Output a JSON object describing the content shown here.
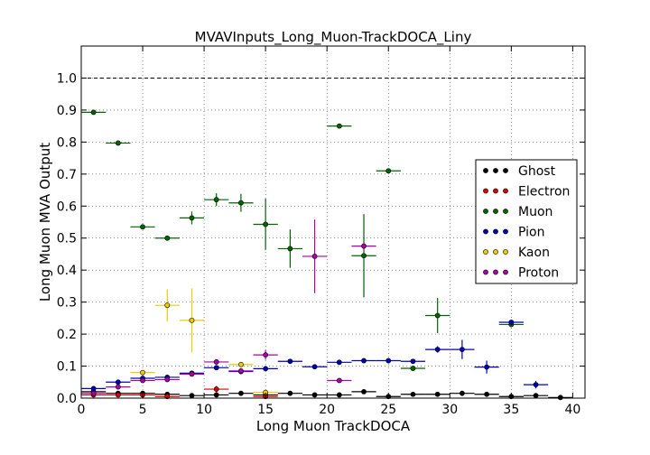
{
  "chart_data": {
    "type": "scatter",
    "title": "MVAVInputs_Long_Muon-TrackDOCA_Liny",
    "xlabel": "Long Muon TrackDOCA",
    "ylabel": "Long Muon MVA Output",
    "xlim": [
      0,
      41
    ],
    "ylim": [
      0,
      1.1
    ],
    "xticks": [
      0,
      5,
      10,
      15,
      20,
      25,
      30,
      35,
      40
    ],
    "yticks": [
      0.0,
      0.1,
      0.2,
      0.3,
      0.4,
      0.5,
      0.6,
      0.7,
      0.8,
      0.9,
      1.0
    ],
    "x_tick_labels": [
      "0",
      "5",
      "10",
      "15",
      "20",
      "25",
      "30",
      "35",
      "40"
    ],
    "y_tick_labels": [
      "0.0",
      "0.1",
      "0.2",
      "0.3",
      "0.4",
      "0.5",
      "0.6",
      "0.7",
      "0.8",
      "0.9",
      "1.0"
    ],
    "grid": true,
    "reference_line": 1.0,
    "legend_position": "right",
    "xerr": 1.0,
    "series": [
      {
        "name": "Ghost",
        "color": "#000000",
        "points": [
          [
            1,
            0.02,
            0.002
          ],
          [
            3,
            0.015,
            0.002
          ],
          [
            5,
            0.015,
            0.002
          ],
          [
            7,
            0.012,
            0.002
          ],
          [
            9,
            0.008,
            0.002
          ],
          [
            11,
            0.01,
            0.002
          ],
          [
            13,
            0.015,
            0.002
          ],
          [
            15,
            0.01,
            0.002
          ],
          [
            17,
            0.015,
            0.002
          ],
          [
            19,
            0.01,
            0.002
          ],
          [
            21,
            0.01,
            0.002
          ],
          [
            23,
            0.02,
            0.002
          ],
          [
            25,
            0.005,
            0.002
          ],
          [
            27,
            0.012,
            0.002
          ],
          [
            29,
            0.012,
            0.002
          ],
          [
            31,
            0.015,
            0.002
          ],
          [
            33,
            0.012,
            0.002
          ],
          [
            35,
            0.005,
            0.002
          ],
          [
            37,
            0.008,
            0.002
          ],
          [
            39,
            0.002,
            0.002
          ]
        ]
      },
      {
        "name": "Electron",
        "color": "#dd0000",
        "points": [
          [
            1,
            0.01,
            0.003
          ],
          [
            3,
            0.01,
            0.003
          ],
          [
            5,
            0.01,
            0.003
          ],
          [
            7,
            0.005,
            0.003
          ],
          [
            11,
            0.028,
            0.01
          ],
          [
            15,
            0.005,
            0.003
          ]
        ]
      },
      {
        "name": "Muon",
        "color": "#006400",
        "points": [
          [
            1,
            0.893,
            0.004
          ],
          [
            3,
            0.797,
            0.004
          ],
          [
            5,
            0.535,
            0.005
          ],
          [
            7,
            0.5,
            0.008
          ],
          [
            9,
            0.563,
            0.02
          ],
          [
            11,
            0.62,
            0.02
          ],
          [
            13,
            0.61,
            0.028
          ],
          [
            15,
            0.543,
            0.08
          ],
          [
            17,
            0.467,
            0.06
          ],
          [
            21,
            0.85,
            0.006
          ],
          [
            23,
            0.445,
            0.13
          ],
          [
            25,
            0.71,
            0.006
          ],
          [
            27,
            0.093,
            0.004
          ],
          [
            29,
            0.258,
            0.055
          ],
          [
            35,
            0.23,
            0.006
          ]
        ]
      },
      {
        "name": "Pion",
        "color": "#0000bb",
        "points": [
          [
            1,
            0.03,
            0.002
          ],
          [
            3,
            0.05,
            0.002
          ],
          [
            5,
            0.062,
            0.002
          ],
          [
            7,
            0.065,
            0.002
          ],
          [
            9,
            0.078,
            0.002
          ],
          [
            11,
            0.095,
            0.003
          ],
          [
            13,
            0.083,
            0.003
          ],
          [
            15,
            0.092,
            0.003
          ],
          [
            17,
            0.115,
            0.003
          ],
          [
            19,
            0.098,
            0.003
          ],
          [
            21,
            0.112,
            0.003
          ],
          [
            23,
            0.117,
            0.003
          ],
          [
            25,
            0.117,
            0.004
          ],
          [
            27,
            0.115,
            0.006
          ],
          [
            29,
            0.152,
            0.01
          ],
          [
            31,
            0.152,
            0.03
          ],
          [
            33,
            0.097,
            0.02
          ],
          [
            35,
            0.237,
            0.006
          ],
          [
            37,
            0.042,
            0.012
          ]
        ]
      },
      {
        "name": "Kaon",
        "color": "#eecc00",
        "points": [
          [
            5,
            0.08,
            0.006
          ],
          [
            7,
            0.29,
            0.05
          ],
          [
            9,
            0.243,
            0.1
          ],
          [
            13,
            0.105,
            0.006
          ],
          [
            15,
            0.018,
            0.005
          ]
        ]
      },
      {
        "name": "Proton",
        "color": "#aa00aa",
        "points": [
          [
            1,
            0.015,
            0.003
          ],
          [
            3,
            0.035,
            0.004
          ],
          [
            5,
            0.055,
            0.004
          ],
          [
            7,
            0.058,
            0.004
          ],
          [
            9,
            0.075,
            0.005
          ],
          [
            11,
            0.113,
            0.008
          ],
          [
            13,
            0.085,
            0.008
          ],
          [
            15,
            0.135,
            0.015
          ],
          [
            19,
            0.443,
            0.115
          ],
          [
            21,
            0.055,
            0.005
          ],
          [
            23,
            0.475,
            0.01
          ]
        ]
      }
    ]
  }
}
